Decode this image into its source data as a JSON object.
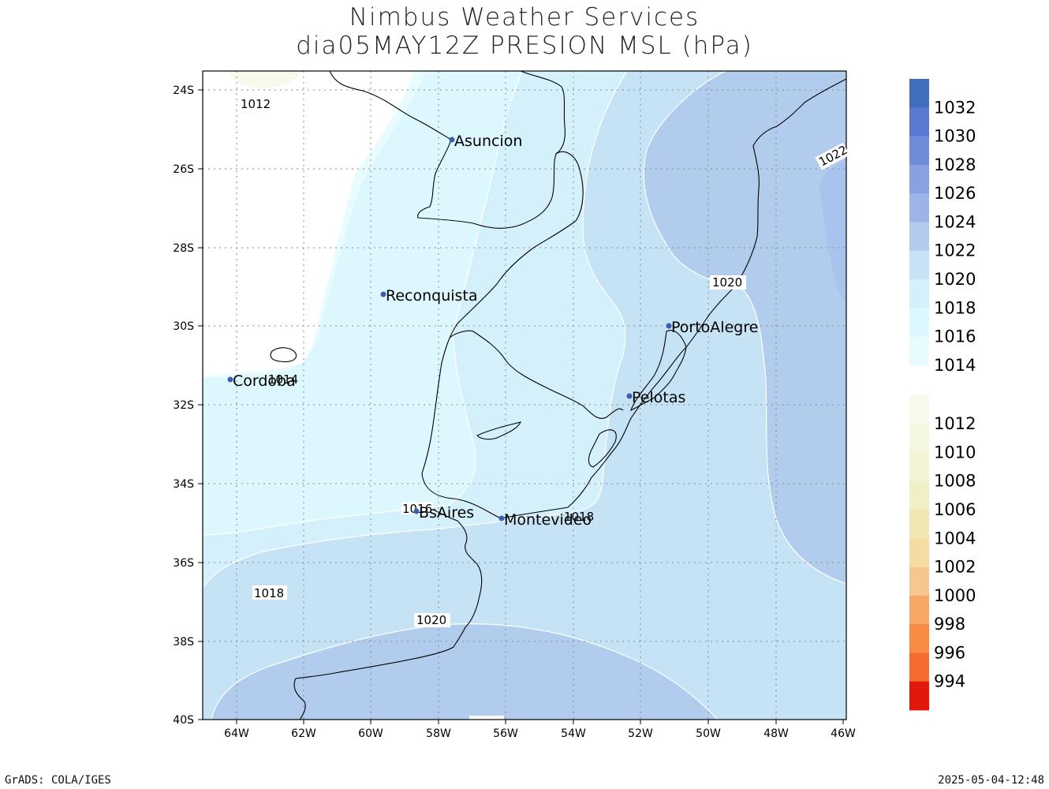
{
  "title": {
    "line1": "Nimbus Weather Services",
    "line2": "dia05MAY12Z PRESION MSL (hPa)"
  },
  "footer": {
    "left": "GrADS: COLA/IGES",
    "right": "2025-05-04-12:48"
  },
  "axes": {
    "lat_ticks": [
      "24S",
      "26S",
      "28S",
      "30S",
      "32S",
      "34S",
      "36S",
      "38S",
      "40S"
    ],
    "lon_ticks": [
      "64W",
      "62W",
      "60W",
      "58W",
      "56W",
      "54W",
      "52W",
      "50W",
      "48W",
      "46W"
    ]
  },
  "cities": [
    {
      "name": "Asuncion"
    },
    {
      "name": "Reconquista"
    },
    {
      "name": "PortoAlegre"
    },
    {
      "name": "Cordoba"
    },
    {
      "name": "Pelotas"
    },
    {
      "name": "BsAires"
    },
    {
      "name": "Montevideo"
    }
  ],
  "contour_labels": [
    "1012",
    "1014",
    "1016",
    "1018",
    "1018",
    "1020",
    "1020",
    "1022"
  ],
  "legend": {
    "items": [
      {
        "label": "1032",
        "color": "#3f6fba"
      },
      {
        "label": "1030",
        "color": "#5a79d0"
      },
      {
        "label": "1028",
        "color": "#6f8cd8"
      },
      {
        "label": "1026",
        "color": "#89a2df"
      },
      {
        "label": "1024",
        "color": "#9db5e6"
      },
      {
        "label": "1022",
        "color": "#b2ccee"
      },
      {
        "label": "1020",
        "color": "#c6e2f5"
      },
      {
        "label": "1018",
        "color": "#d4f1fb"
      },
      {
        "label": "1016",
        "color": "#dcf7fd"
      },
      {
        "label": "1014",
        "color": "#e8fbfe"
      },
      {
        "label": "1012",
        "color": "#f8faeb"
      },
      {
        "label": "1010",
        "color": "#f6f7e2"
      },
      {
        "label": "1008",
        "color": "#f3f4d5"
      },
      {
        "label": "1006",
        "color": "#f1efc6"
      },
      {
        "label": "1004",
        "color": "#f0e7b4"
      },
      {
        "label": "1002",
        "color": "#f6dba5"
      },
      {
        "label": "1000",
        "color": "#f6c790"
      },
      {
        "label": "998",
        "color": "#f8a866"
      },
      {
        "label": "996",
        "color": "#f88c43"
      },
      {
        "label": "994",
        "color": "#f56c30"
      },
      {
        "label": "",
        "color": "#e2180c"
      }
    ]
  }
}
